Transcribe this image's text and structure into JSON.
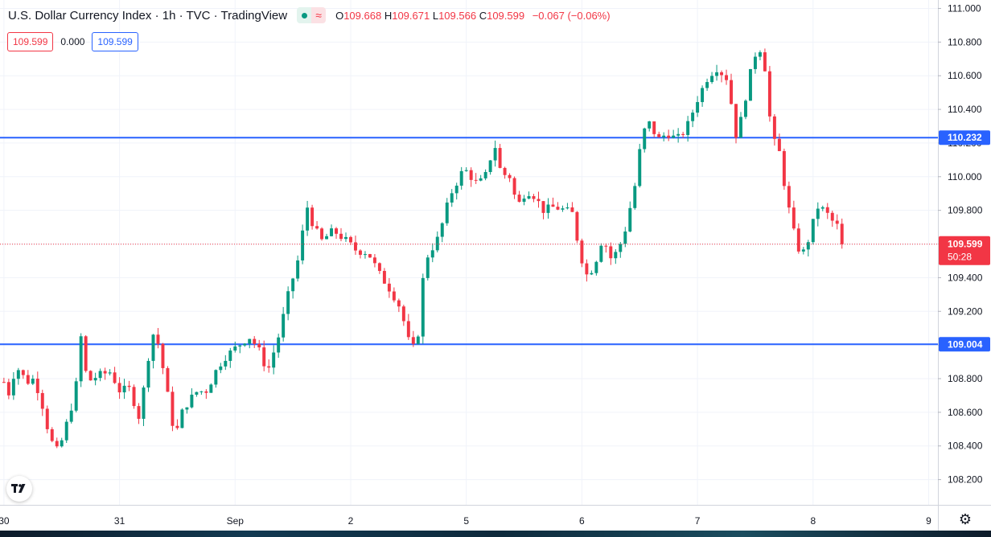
{
  "legend": {
    "title": "U.S. Dollar Currency Index · 1h · TVC · TradingView",
    "open_label": "O",
    "open": "109.668",
    "high_label": "H",
    "high": "109.671",
    "low_label": "L",
    "low": "109.566",
    "close_label": "C",
    "close": "109.599",
    "change": "−0.067 (−0.06%)",
    "wave_icon": "≈"
  },
  "pills": {
    "bid": "109.599",
    "spread": "0.000",
    "ask": "109.599"
  },
  "price_badge": {
    "price": "109.599",
    "countdown": "50:28"
  },
  "icons": [
    "tradingview-logo-icon",
    "gear-icon",
    "dot-icon",
    "wave-icon"
  ],
  "colors": {
    "up": "#089981",
    "down": "#f23645",
    "hline": "#2962ff",
    "grid": "#f0f3fa",
    "text": "#131722"
  },
  "chart_data": {
    "type": "candlestick",
    "y_ticks": [
      108.2,
      108.4,
      108.6,
      108.8,
      109.0,
      109.2,
      109.4,
      109.6,
      109.8,
      110.0,
      110.2,
      110.4,
      110.6,
      110.8,
      111.0
    ],
    "y_tick_labels": [
      "108.200",
      "108.400",
      "108.600",
      "108.800",
      "109.000",
      "109.200",
      "109.400",
      "109.600",
      "109.800",
      "110.000",
      "110.200",
      "110.400",
      "110.600",
      "110.800",
      "111.000"
    ],
    "ylim": [
      108.05,
      111.05
    ],
    "x_labels": [
      {
        "label": "30",
        "x": 0
      },
      {
        "label": "31",
        "x": 1
      },
      {
        "label": "Sep",
        "x": 2
      },
      {
        "label": "2",
        "x": 3
      },
      {
        "label": "5",
        "x": 4
      },
      {
        "label": "6",
        "x": 5
      },
      {
        "label": "7",
        "x": 6
      },
      {
        "label": "8",
        "x": 7
      },
      {
        "label": "9",
        "x": 8
      }
    ],
    "xlim": [
      -0.02,
      8.08
    ],
    "horizontal_lines": [
      {
        "price": 110.232,
        "label": "110.232"
      },
      {
        "price": 109.004,
        "label": "109.004"
      }
    ],
    "last_price": 109.599,
    "grid": true,
    "price_path": [
      [
        0.0,
        108.78
      ],
      [
        0.05,
        108.7
      ],
      [
        0.1,
        108.88
      ],
      [
        0.2,
        108.78
      ],
      [
        0.26,
        108.8
      ],
      [
        0.32,
        108.68
      ],
      [
        0.4,
        108.44
      ],
      [
        0.47,
        108.36
      ],
      [
        0.55,
        108.55
      ],
      [
        0.62,
        108.72
      ],
      [
        0.66,
        109.08
      ],
      [
        0.72,
        108.78
      ],
      [
        0.82,
        108.82
      ],
      [
        0.92,
        108.84
      ],
      [
        1.0,
        108.73
      ],
      [
        1.1,
        108.74
      ],
      [
        1.16,
        108.55
      ],
      [
        1.22,
        108.78
      ],
      [
        1.28,
        109.08
      ],
      [
        1.34,
        109.0
      ],
      [
        1.43,
        108.65
      ],
      [
        1.48,
        108.45
      ],
      [
        1.55,
        108.62
      ],
      [
        1.66,
        108.72
      ],
      [
        1.76,
        108.73
      ],
      [
        1.82,
        108.83
      ],
      [
        1.9,
        108.92
      ],
      [
        2.0,
        108.98
      ],
      [
        2.12,
        109.05
      ],
      [
        2.2,
        108.98
      ],
      [
        2.28,
        108.84
      ],
      [
        2.38,
        109.06
      ],
      [
        2.46,
        109.3
      ],
      [
        2.55,
        109.52
      ],
      [
        2.62,
        109.83
      ],
      [
        2.68,
        109.7
      ],
      [
        2.75,
        109.62
      ],
      [
        2.85,
        109.68
      ],
      [
        2.96,
        109.62
      ],
      [
        3.05,
        109.56
      ],
      [
        3.15,
        109.55
      ],
      [
        3.25,
        109.42
      ],
      [
        3.35,
        109.32
      ],
      [
        3.43,
        109.22
      ],
      [
        3.51,
        109.0
      ],
      [
        3.57,
        108.97
      ],
      [
        3.64,
        109.5
      ],
      [
        3.76,
        109.64
      ],
      [
        3.86,
        109.89
      ],
      [
        3.98,
        110.05
      ],
      [
        4.1,
        109.95
      ],
      [
        4.18,
        110.02
      ],
      [
        4.24,
        110.21
      ],
      [
        4.3,
        110.02
      ],
      [
        4.38,
        110.0
      ],
      [
        4.44,
        109.82
      ],
      [
        4.52,
        109.92
      ],
      [
        4.6,
        109.88
      ],
      [
        4.66,
        109.8
      ],
      [
        4.76,
        109.82
      ],
      [
        4.86,
        109.8
      ],
      [
        4.92,
        109.78
      ],
      [
        4.98,
        109.55
      ],
      [
        5.05,
        109.4
      ],
      [
        5.12,
        109.5
      ],
      [
        5.18,
        109.64
      ],
      [
        5.26,
        109.5
      ],
      [
        5.36,
        109.64
      ],
      [
        5.46,
        109.95
      ],
      [
        5.52,
        110.25
      ],
      [
        5.58,
        110.32
      ],
      [
        5.66,
        110.22
      ],
      [
        5.74,
        110.26
      ],
      [
        5.82,
        110.22
      ],
      [
        5.9,
        110.28
      ],
      [
        6.0,
        110.46
      ],
      [
        6.08,
        110.58
      ],
      [
        6.16,
        110.65
      ],
      [
        6.26,
        110.58
      ],
      [
        6.3,
        110.4
      ],
      [
        6.34,
        110.22
      ],
      [
        6.4,
        110.42
      ],
      [
        6.46,
        110.62
      ],
      [
        6.52,
        110.78
      ],
      [
        6.56,
        110.74
      ],
      [
        6.6,
        110.58
      ],
      [
        6.64,
        110.22
      ],
      [
        6.7,
        110.18
      ],
      [
        6.76,
        109.92
      ],
      [
        6.82,
        109.7
      ],
      [
        6.88,
        109.56
      ],
      [
        6.93,
        109.55
      ],
      [
        6.98,
        109.68
      ],
      [
        7.04,
        109.82
      ],
      [
        7.1,
        109.8
      ],
      [
        7.16,
        109.74
      ],
      [
        7.22,
        109.7
      ],
      [
        7.26,
        109.6
      ]
    ]
  }
}
